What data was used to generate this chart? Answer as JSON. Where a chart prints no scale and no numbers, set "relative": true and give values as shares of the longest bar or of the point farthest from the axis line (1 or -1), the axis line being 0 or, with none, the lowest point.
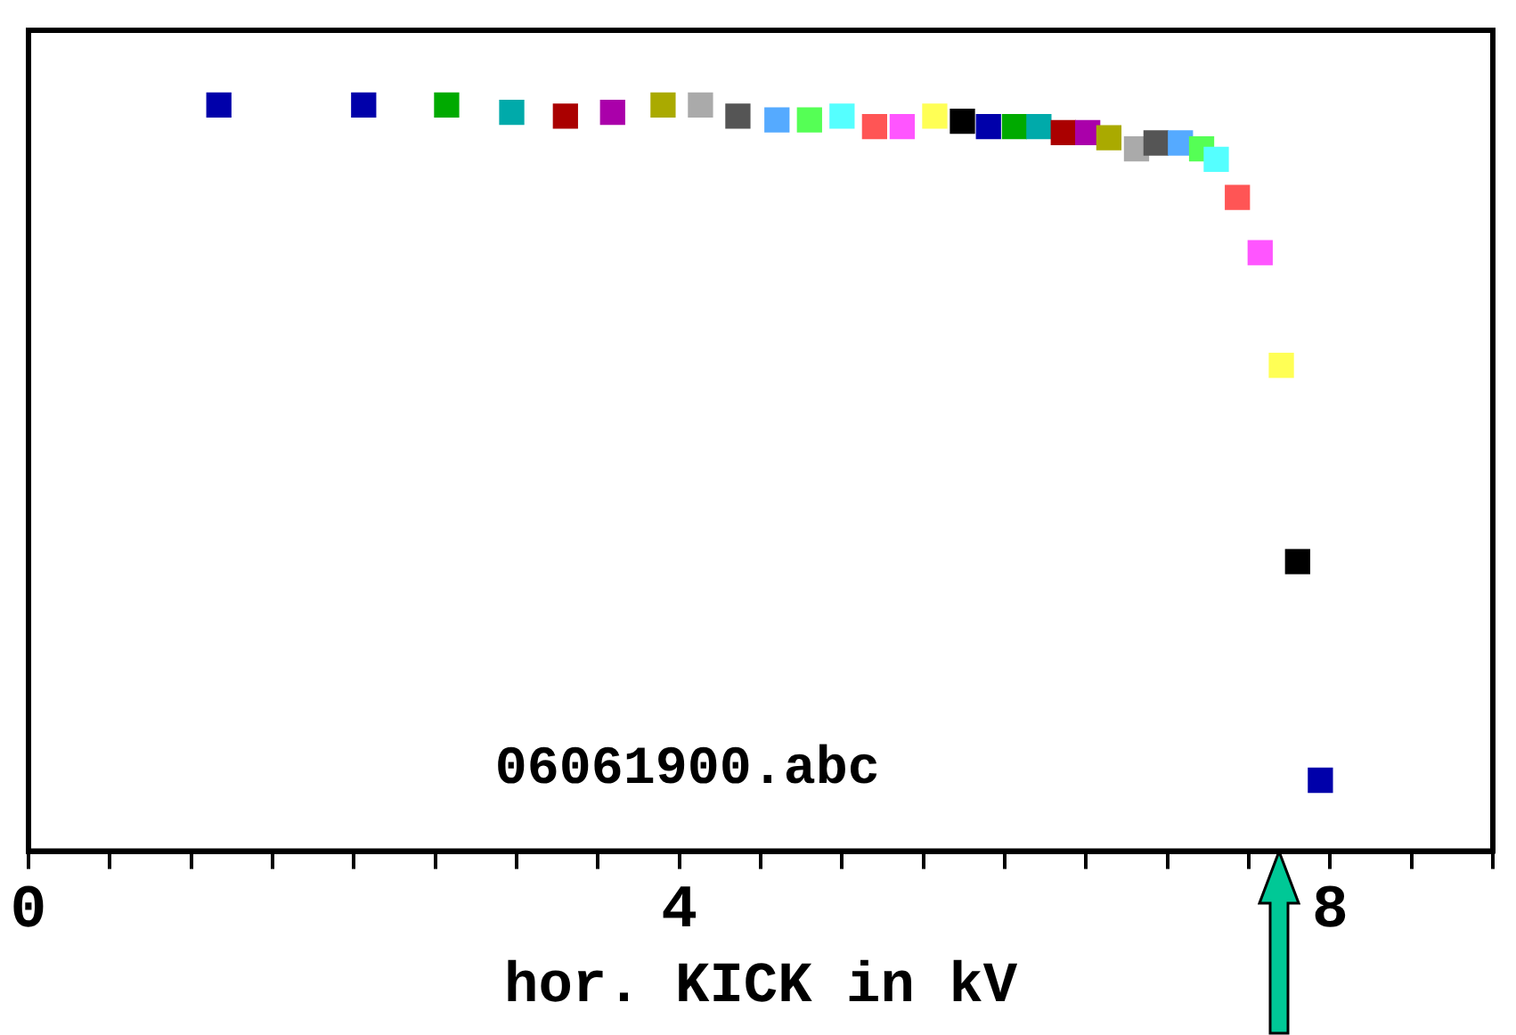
{
  "chart_data": {
    "type": "scatter",
    "xlabel": "hor. KICK in kV",
    "annotations": [
      "06061900.abc"
    ],
    "relative": true,
    "marker": "square",
    "grid": false,
    "xlim": [
      0,
      9
    ],
    "xticks": [
      0,
      {
        "value": 0.5,
        "label": null
      },
      {
        "value": 1,
        "label": null
      },
      {
        "value": 1.5,
        "label": null
      },
      {
        "value": 2,
        "label": null
      },
      {
        "value": 2.5,
        "label": null
      },
      {
        "value": 3,
        "label": null
      },
      {
        "value": 3.5,
        "label": null
      },
      4,
      {
        "value": 4.5,
        "label": null
      },
      {
        "value": 5,
        "label": null
      },
      {
        "value": 5.5,
        "label": null
      },
      {
        "value": 6,
        "label": null
      },
      {
        "value": 6.5,
        "label": null
      },
      {
        "value": 7,
        "label": null
      },
      {
        "value": 7.5,
        "label": null
      },
      8,
      {
        "value": 8.5,
        "label": null
      },
      {
        "value": 9,
        "label": null
      }
    ],
    "series": [
      {
        "x": [
          1.17,
          2.06,
          2.57,
          2.97,
          3.3,
          3.59,
          3.9,
          4.13,
          4.36,
          4.6,
          4.8,
          5.0,
          5.2,
          5.37,
          5.57,
          5.74,
          5.9,
          6.06,
          6.21,
          6.36,
          6.51,
          6.64,
          6.81,
          6.93,
          7.08,
          7.21,
          7.3,
          7.43,
          7.57,
          7.7,
          7.8,
          7.94
        ],
        "values": [
          1,
          1,
          1,
          0.99,
          0.985,
          0.99,
          1,
          1,
          0.985,
          0.98,
          0.98,
          0.985,
          0.971,
          0.971,
          0.985,
          0.978,
          0.971,
          0.971,
          0.971,
          0.963,
          0.963,
          0.956,
          0.941,
          0.949,
          0.949,
          0.941,
          0.927,
          0.876,
          0.802,
          0.651,
          0.388,
          0.095
        ],
        "colors": [
          "#0000aa",
          "#0000aa",
          "#00aa00",
          "#00aaaa",
          "#aa0000",
          "#aa00aa",
          "#aaaa00",
          "#aaaaaa",
          "#555555",
          "#55aaff",
          "#55ff55",
          "#55ffff",
          "#ff5555",
          "#ff55ff",
          "#ffff55",
          "#000000",
          "#0000aa",
          "#00aa00",
          "#00aaaa",
          "#aa0000",
          "#aa00aa",
          "#aaaa00",
          "#aaaaaa",
          "#555555",
          "#55aaff",
          "#55ff55",
          "#55ffff",
          "#ff5555",
          "#ff55ff",
          "#ffff55",
          "#000000",
          "#0000aa"
        ]
      }
    ]
  }
}
